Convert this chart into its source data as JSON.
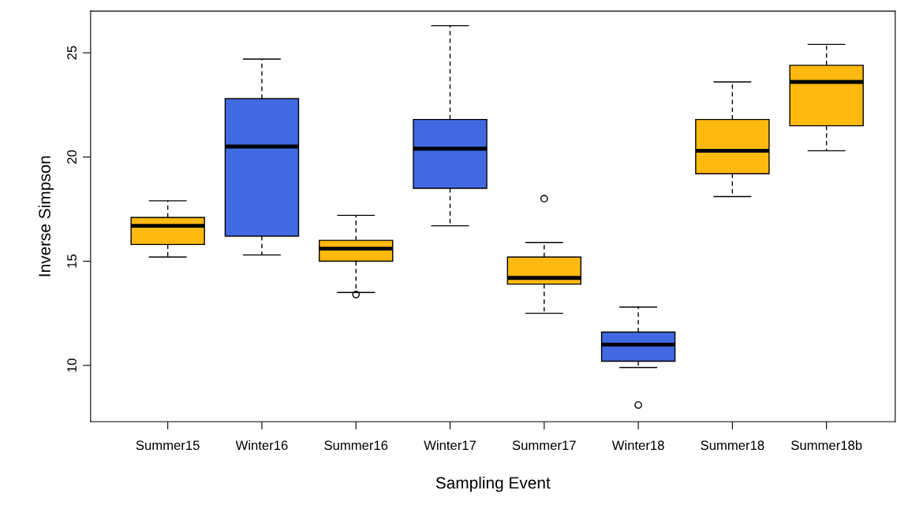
{
  "chart_data": {
    "type": "box",
    "xlabel": "Sampling Event",
    "ylabel": "Inverse Simpson",
    "categories": [
      "Summer15",
      "Winter16",
      "Summer16",
      "Winter17",
      "Summer17",
      "Winter18",
      "Summer18",
      "Summer18b"
    ],
    "colors": [
      "#ffb90f",
      "#4169e1",
      "#ffb90f",
      "#4169e1",
      "#ffb90f",
      "#4169e1",
      "#ffb90f",
      "#ffb90f"
    ],
    "boxes": [
      {
        "low": 15.2,
        "q1": 15.8,
        "median": 16.7,
        "q3": 17.1,
        "high": 17.9
      },
      {
        "low": 15.3,
        "q1": 16.2,
        "median": 20.5,
        "q3": 22.8,
        "high": 24.7
      },
      {
        "low": 13.5,
        "q1": 15.0,
        "median": 15.6,
        "q3": 16.0,
        "high": 17.2,
        "outliers": [
          13.4
        ]
      },
      {
        "low": 16.7,
        "q1": 18.5,
        "median": 20.4,
        "q3": 21.8,
        "high": 26.3
      },
      {
        "low": 12.5,
        "q1": 13.9,
        "median": 14.2,
        "q3": 15.2,
        "high": 15.9,
        "outliers": [
          18.0
        ]
      },
      {
        "low": 9.9,
        "q1": 10.2,
        "median": 11.0,
        "q3": 11.6,
        "high": 12.8,
        "outliers": [
          8.1
        ]
      },
      {
        "low": 18.1,
        "q1": 19.2,
        "median": 20.3,
        "q3": 21.8,
        "high": 23.6
      },
      {
        "low": 20.3,
        "q1": 21.5,
        "median": 23.6,
        "q3": 24.4,
        "high": 25.4
      }
    ],
    "ylim": [
      7.3,
      27.0
    ],
    "yticks": [
      10,
      15,
      20,
      25
    ],
    "grid": false
  }
}
